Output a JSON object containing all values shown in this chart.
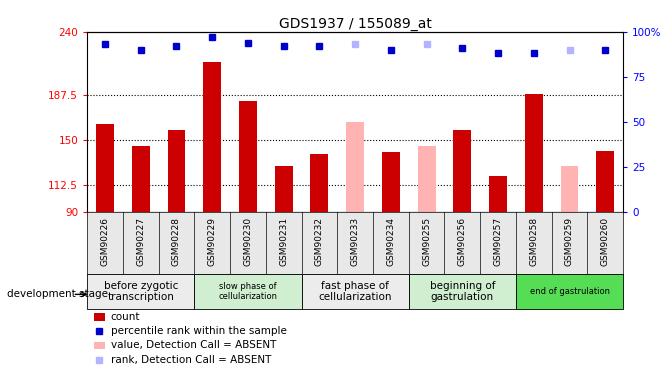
{
  "title": "GDS1937 / 155089_at",
  "samples": [
    "GSM90226",
    "GSM90227",
    "GSM90228",
    "GSM90229",
    "GSM90230",
    "GSM90231",
    "GSM90232",
    "GSM90233",
    "GSM90234",
    "GSM90255",
    "GSM90256",
    "GSM90257",
    "GSM90258",
    "GSM90259",
    "GSM90260"
  ],
  "bar_values": [
    163,
    145,
    158,
    215,
    182,
    128,
    138,
    null,
    140,
    null,
    158,
    120,
    188,
    null,
    141
  ],
  "bar_values_absent": [
    null,
    null,
    null,
    null,
    null,
    null,
    null,
    165,
    null,
    145,
    null,
    null,
    null,
    128,
    null
  ],
  "dot_values": [
    93,
    90,
    92,
    97,
    94,
    92,
    92,
    null,
    90,
    null,
    91,
    88,
    88,
    null,
    90
  ],
  "dot_values_absent": [
    null,
    null,
    null,
    null,
    null,
    null,
    null,
    93,
    null,
    93,
    null,
    null,
    null,
    90,
    null
  ],
  "bar_color": "#cc0000",
  "bar_absent_color": "#ffb3b3",
  "dot_color": "#0000cc",
  "dot_absent_color": "#b3b3ff",
  "ylim_left": [
    90,
    240
  ],
  "ylim_right": [
    0,
    100
  ],
  "yticks_left": [
    90,
    112.5,
    150,
    187.5,
    240
  ],
  "ytick_labels_left": [
    "90",
    "112.5",
    "150",
    "187.5",
    "240"
  ],
  "yticks_right": [
    0,
    25,
    50,
    75,
    100
  ],
  "ytick_labels_right": [
    "0",
    "25",
    "50",
    "75",
    "100%"
  ],
  "dotted_lines": [
    112.5,
    150,
    187.5
  ],
  "groups": [
    {
      "label": "before zygotic\ntranscription",
      "start": 0,
      "end": 3,
      "color": "#ececec",
      "font_small": false
    },
    {
      "label": "slow phase of\ncellularization",
      "start": 3,
      "end": 6,
      "color": "#d0efd0",
      "font_small": true
    },
    {
      "label": "fast phase of\ncellularization",
      "start": 6,
      "end": 9,
      "color": "#ececec",
      "font_small": false
    },
    {
      "label": "beginning of\ngastrulation",
      "start": 9,
      "end": 12,
      "color": "#d0efd0",
      "font_small": false
    },
    {
      "label": "end of gastrulation",
      "start": 12,
      "end": 15,
      "color": "#55dd55",
      "font_small": true
    }
  ],
  "dev_stage_label": "development stage",
  "legend_items": [
    {
      "label": "count",
      "color": "#cc0000",
      "type": "bar"
    },
    {
      "label": "percentile rank within the sample",
      "color": "#0000cc",
      "type": "dot"
    },
    {
      "label": "value, Detection Call = ABSENT",
      "color": "#ffb3b3",
      "type": "bar"
    },
    {
      "label": "rank, Detection Call = ABSENT",
      "color": "#b3b3ff",
      "type": "dot"
    }
  ],
  "bar_width": 0.5,
  "figsize": [
    6.7,
    3.75
  ],
  "dpi": 100
}
